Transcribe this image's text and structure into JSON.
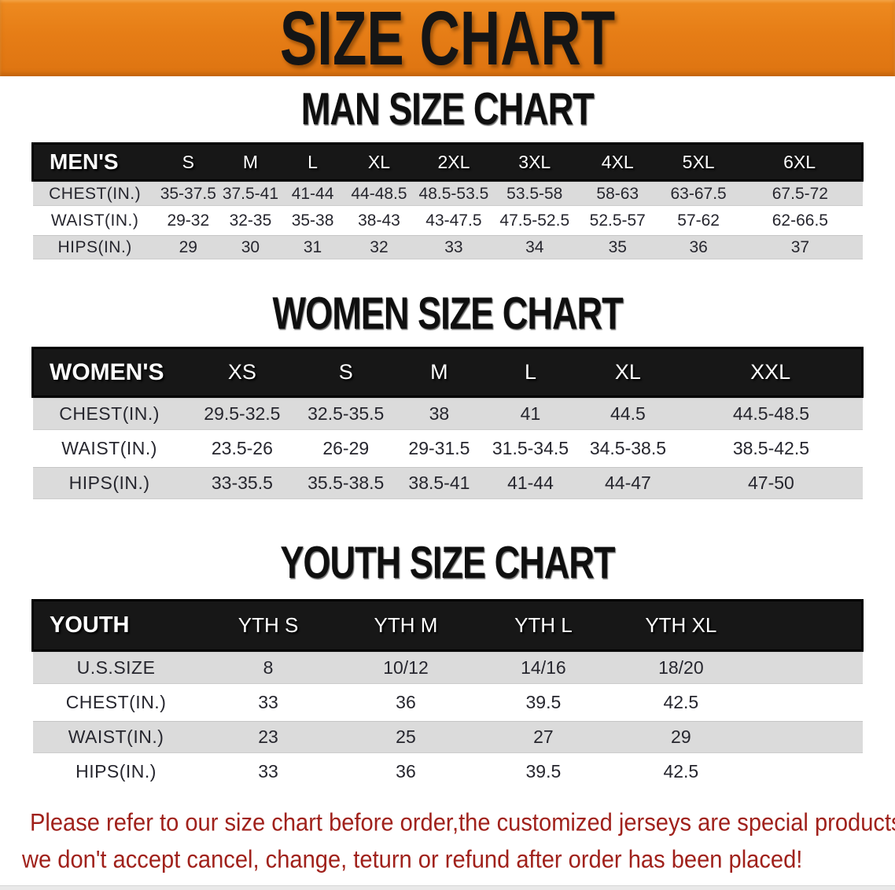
{
  "banner": {
    "title": "SIZE CHART"
  },
  "sections": [
    {
      "heading": "MAN SIZE CHART",
      "group_label": "MEN'S",
      "sizes": [
        "S",
        "M",
        "L",
        "XL",
        "2XL",
        "3XL",
        "4XL",
        "5XL",
        "6XL"
      ],
      "rows": [
        {
          "label": "CHEST(IN.)",
          "values": [
            "35-37.5",
            "37.5-41",
            "41-44",
            "44-48.5",
            "48.5-53.5",
            "53.5-58",
            "58-63",
            "63-67.5",
            "67.5-72"
          ]
        },
        {
          "label": "WAIST(IN.)",
          "values": [
            "29-32",
            "32-35",
            "35-38",
            "38-43",
            "43-47.5",
            "47.5-52.5",
            "52.5-57",
            "57-62",
            "62-66.5"
          ]
        },
        {
          "label": "HIPS(IN.)",
          "values": [
            "29",
            "30",
            "31",
            "32",
            "33",
            "34",
            "35",
            "36",
            "37"
          ]
        }
      ]
    },
    {
      "heading": "WOMEN SIZE CHART",
      "group_label": "WOMEN'S",
      "sizes": [
        "XS",
        "S",
        "M",
        "L",
        "XL",
        "XXL"
      ],
      "rows": [
        {
          "label": "CHEST(IN.)",
          "values": [
            "29.5-32.5",
            "32.5-35.5",
            "38",
            "41",
            "44.5",
            "44.5-48.5"
          ]
        },
        {
          "label": "WAIST(IN.)",
          "values": [
            "23.5-26",
            "26-29",
            "29-31.5",
            "31.5-34.5",
            "34.5-38.5",
            "38.5-42.5"
          ]
        },
        {
          "label": "HIPS(IN.)",
          "values": [
            "33-35.5",
            "35.5-38.5",
            "38.5-41",
            "41-44",
            "44-47",
            "47-50"
          ]
        }
      ]
    },
    {
      "heading": "YOUTH SIZE CHART",
      "group_label": "YOUTH",
      "sizes": [
        "YTH S",
        "YTH M",
        "YTH L",
        "YTH XL"
      ],
      "rows": [
        {
          "label": "U.S.SIZE",
          "values": [
            "8",
            "10/12",
            "14/16",
            "18/20"
          ]
        },
        {
          "label": "CHEST(IN.)",
          "values": [
            "33",
            "36",
            "39.5",
            "42.5"
          ]
        },
        {
          "label": "WAIST(IN.)",
          "values": [
            "23",
            "25",
            "27",
            "29"
          ]
        },
        {
          "label": "HIPS(IN.)",
          "values": [
            "33",
            "36",
            "39.5",
            "42.5"
          ]
        }
      ]
    }
  ],
  "footer": {
    "line1": "Please refer to our size chart before order,the customized jerseys are special products,",
    "line2": "we don't accept cancel, change, teturn or refund after order has been placed!"
  },
  "colors": {
    "banner_bg": "#E67D16",
    "header_bg": "#171717",
    "row_stripe": "#DBDBDB",
    "note_red": "#A0211B"
  }
}
